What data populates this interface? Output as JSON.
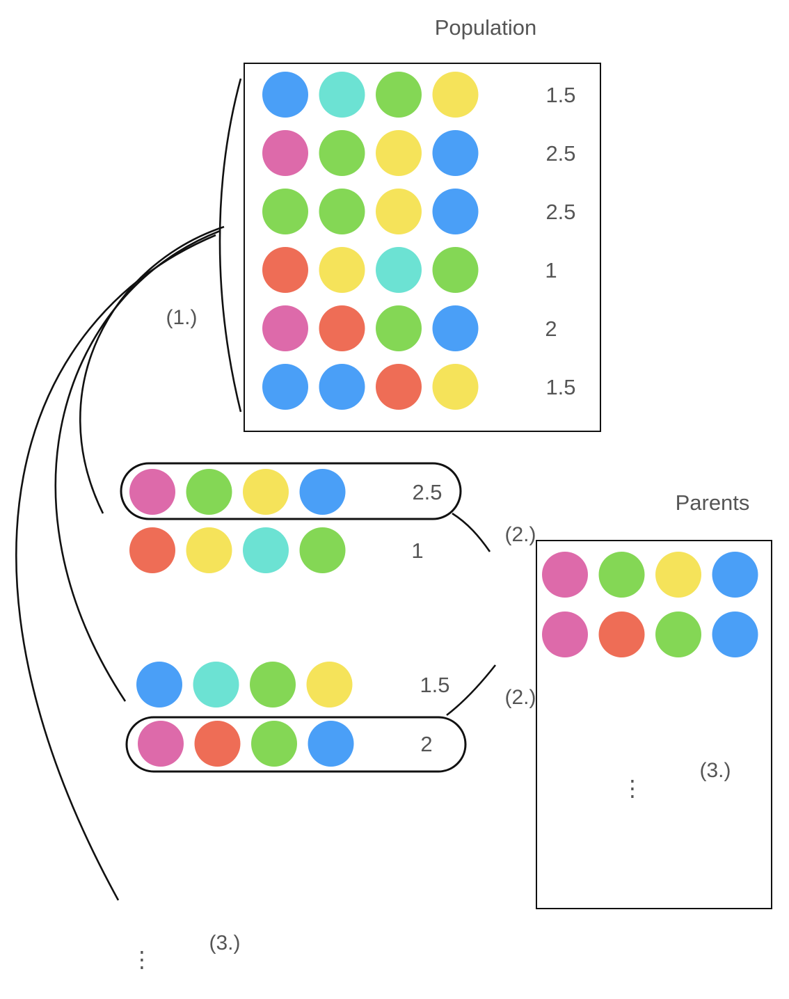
{
  "colors": {
    "blue": "#4A9FF7",
    "cyan": "#6CE2D3",
    "green": "#84D755",
    "yellow": "#F5E35A",
    "pink": "#DD6AAA",
    "red": "#EE6D56"
  },
  "population": {
    "title": "Population",
    "rows": [
      {
        "genes": [
          "blue",
          "cyan",
          "green",
          "yellow"
        ],
        "fitness": "1.5"
      },
      {
        "genes": [
          "pink",
          "green",
          "yellow",
          "blue"
        ],
        "fitness": "2.5"
      },
      {
        "genes": [
          "green",
          "green",
          "yellow",
          "blue"
        ],
        "fitness": "2.5"
      },
      {
        "genes": [
          "red",
          "yellow",
          "cyan",
          "green"
        ],
        "fitness": "1"
      },
      {
        "genes": [
          "pink",
          "red",
          "green",
          "blue"
        ],
        "fitness": "2"
      },
      {
        "genes": [
          "blue",
          "blue",
          "red",
          "yellow"
        ],
        "fitness": "1.5"
      }
    ]
  },
  "tournaments": [
    {
      "candidates": [
        {
          "genes": [
            "pink",
            "green",
            "yellow",
            "blue"
          ],
          "fitness": "2.5",
          "selected": true
        },
        {
          "genes": [
            "red",
            "yellow",
            "cyan",
            "green"
          ],
          "fitness": "1",
          "selected": false
        }
      ]
    },
    {
      "candidates": [
        {
          "genes": [
            "blue",
            "cyan",
            "green",
            "yellow"
          ],
          "fitness": "1.5",
          "selected": false
        },
        {
          "genes": [
            "pink",
            "red",
            "green",
            "blue"
          ],
          "fitness": "2",
          "selected": true
        }
      ]
    }
  ],
  "parents": {
    "title": "Parents",
    "rows": [
      {
        "genes": [
          "pink",
          "green",
          "yellow",
          "blue"
        ]
      },
      {
        "genes": [
          "pink",
          "red",
          "green",
          "blue"
        ]
      }
    ],
    "ellipsis": "⋮"
  },
  "steps": {
    "one": "(1.)",
    "two_a": "(2.)",
    "two_b": "(2.)",
    "three_left": "(3.)",
    "three_right": "(3.)"
  },
  "bottom_ellipsis": "⋮"
}
